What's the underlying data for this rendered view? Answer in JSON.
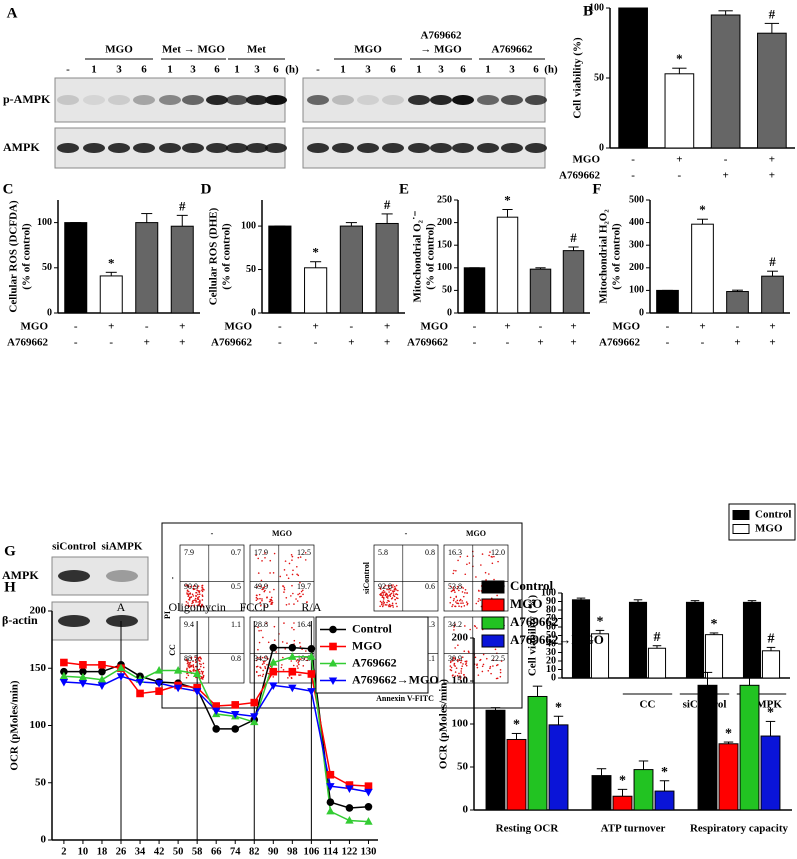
{
  "blot_a": {
    "panel": "A",
    "rows": [
      "p-AMPK",
      "AMPK"
    ],
    "left": {
      "groups": [
        [
          "MGO"
        ],
        [
          "Met → MGO"
        ],
        [
          "Met"
        ]
      ],
      "lanes": [
        "-",
        "1",
        "3",
        "6",
        "1",
        "3",
        "6",
        "1",
        "3",
        "6"
      ],
      "unit": "(h)"
    },
    "right": {
      "groups": [
        [
          "MGO"
        ],
        [
          "A769662",
          "→ MGO"
        ],
        [
          "A769662"
        ]
      ],
      "lanes": [
        "-",
        "1",
        "3",
        "6",
        "1",
        "3",
        "6",
        "1",
        "3",
        "6"
      ],
      "unit": "(h)"
    }
  },
  "blot_g": {
    "panel": "G",
    "lanes": [
      "siControl",
      "siAMPK"
    ],
    "rows": [
      "AMPK",
      "β-actin"
    ]
  },
  "flow": {
    "x_label": "Annexin V-FITC",
    "y_label": "PI",
    "groups": [
      {
        "columns": [
          "-",
          "MGO"
        ],
        "rows": [
          "-",
          "CC"
        ],
        "plots": [
          [
            "7.9",
            "0.7",
            "90.9",
            "0.5"
          ],
          [
            "17.9",
            "12.5",
            "49.9",
            "19.7"
          ],
          [
            "9.4",
            "1.1",
            "88.7",
            "0.8"
          ],
          [
            "28.8",
            "16.4",
            "34.9",
            "19.9"
          ]
        ]
      },
      {
        "columns": [
          "-",
          "MGO"
        ],
        "rows": [
          "siControl",
          "siAMPK"
        ],
        "plots": [
          [
            "5.8",
            "0.8",
            "92.8",
            "0.6"
          ],
          [
            "16.3",
            "12.0",
            "53.8",
            "17.9"
          ],
          [
            "7.7",
            "1.3",
            "89.9",
            "1.1"
          ],
          [
            "34.2",
            "12.4",
            "30.9",
            "22.5"
          ]
        ]
      }
    ]
  },
  "chart_data": [
    {
      "type": "bar",
      "panel": "B",
      "ylabel": [
        "Cell viability (%)"
      ],
      "values": [
        100,
        53,
        95,
        82
      ],
      "errors": [
        0,
        4,
        3,
        7
      ],
      "sig": [
        null,
        "*",
        null,
        "#"
      ],
      "colors": [
        "#000000",
        "#ffffff",
        "#666666",
        "#666666"
      ],
      "factors": [
        {
          "name": "MGO",
          "levels": [
            "-",
            "+",
            "-",
            "+"
          ]
        },
        {
          "name": "A769662",
          "levels": [
            "-",
            "-",
            "+",
            "+"
          ]
        }
      ],
      "ylim": [
        0,
        100
      ],
      "yticks": [
        0,
        50,
        100
      ]
    },
    {
      "type": "bar",
      "panel": "C",
      "ylabel": [
        "Cellular ROS (DCFDA)",
        "(% of control)"
      ],
      "values": [
        100,
        41,
        100,
        96
      ],
      "errors": [
        0,
        4,
        10,
        12
      ],
      "sig": [
        null,
        "*",
        null,
        "#"
      ],
      "colors": [
        "#000000",
        "#ffffff",
        "#666666",
        "#666666"
      ],
      "factors": [
        {
          "name": "MGO",
          "levels": [
            "-",
            "+",
            "-",
            "+"
          ]
        },
        {
          "name": "A769662",
          "levels": [
            "-",
            "-",
            "+",
            "+"
          ]
        }
      ],
      "ylim": [
        0,
        125
      ],
      "yticks": [
        0,
        50,
        100
      ]
    },
    {
      "type": "bar",
      "panel": "D",
      "ylabel": [
        "Cellular ROS (DHE)",
        "(% of control)"
      ],
      "values": [
        100,
        52,
        100,
        103
      ],
      "errors": [
        0,
        7,
        4,
        11
      ],
      "sig": [
        null,
        "*",
        null,
        "#"
      ],
      "colors": [
        "#000000",
        "#ffffff",
        "#666666",
        "#666666"
      ],
      "factors": [
        {
          "name": "MGO",
          "levels": [
            "-",
            "+",
            "-",
            "+"
          ]
        },
        {
          "name": "A769662",
          "levels": [
            "-",
            "-",
            "+",
            "+"
          ]
        }
      ],
      "ylim": [
        0,
        130
      ],
      "yticks": [
        0,
        50,
        100
      ]
    },
    {
      "type": "bar",
      "panel": "E",
      "ylabel": [
        "Mitochondrial O₂˙⁻",
        "(% of control)"
      ],
      "values": [
        100,
        212,
        97,
        138
      ],
      "errors": [
        0,
        17,
        3,
        8
      ],
      "sig": [
        null,
        "*",
        null,
        "#"
      ],
      "colors": [
        "#000000",
        "#ffffff",
        "#666666",
        "#666666"
      ],
      "factors": [
        {
          "name": "MGO",
          "levels": [
            "-",
            "+",
            "-",
            "+"
          ]
        },
        {
          "name": "A769662",
          "levels": [
            "-",
            "-",
            "+",
            "+"
          ]
        }
      ],
      "ylim": [
        0,
        250
      ],
      "yticks": [
        0,
        50,
        100,
        150,
        200,
        250
      ]
    },
    {
      "type": "bar",
      "panel": "F",
      "ylabel": [
        "Mitochondrial H₂O₂",
        "(% of control)"
      ],
      "values": [
        100,
        393,
        95,
        163
      ],
      "errors": [
        0,
        22,
        6,
        22
      ],
      "sig": [
        null,
        "*",
        null,
        "#"
      ],
      "colors": [
        "#000000",
        "#ffffff",
        "#666666",
        "#666666"
      ],
      "factors": [
        {
          "name": "MGO",
          "levels": [
            "-",
            "+",
            "-",
            "+"
          ]
        },
        {
          "name": "A769662",
          "levels": [
            "-",
            "-",
            "+",
            "+"
          ]
        }
      ],
      "ylim": [
        0,
        500
      ],
      "yticks": [
        0,
        100,
        200,
        300,
        400,
        500
      ]
    },
    {
      "type": "grouped-bar",
      "ylabel": [
        "Cell viability (%)"
      ],
      "categories": [
        null,
        "CC",
        "siControl",
        "siAMPK"
      ],
      "legend": "upper-right",
      "series": [
        {
          "name": "Control",
          "color": "#000000",
          "values": [
            92,
            89,
            89,
            89
          ],
          "errors": [
            2,
            3,
            2,
            2
          ]
        },
        {
          "name": "MGO",
          "color": "#ffffff",
          "values": [
            52,
            35,
            51,
            32
          ],
          "errors": [
            4,
            3,
            2,
            4
          ],
          "sig": [
            "*",
            "#",
            "*",
            "#"
          ]
        }
      ],
      "ylim": [
        0,
        100
      ],
      "yticks": [
        0,
        10,
        20,
        30,
        40,
        50,
        60,
        70,
        80,
        90,
        100
      ]
    },
    {
      "type": "line",
      "panel": "H",
      "xlabel": "Time (min)",
      "ylabel": "OCR (pMoles/min)",
      "legend": "upper-right",
      "x": [
        2,
        10,
        18,
        26,
        34,
        42,
        50,
        58,
        66,
        74,
        82,
        90,
        98,
        106,
        114,
        122,
        130
      ],
      "xlim": [
        -3,
        134
      ],
      "xticks": [
        2,
        10,
        18,
        26,
        34,
        42,
        50,
        58,
        66,
        74,
        82,
        90,
        98,
        106,
        114,
        122,
        130
      ],
      "ylim": [
        0,
        200
      ],
      "yticks": [
        0,
        50,
        100,
        150,
        200
      ],
      "phases": [
        {
          "label": "A",
          "x": 26
        },
        {
          "label": "Oligomycin",
          "x": 58
        },
        {
          "label": "FCCP",
          "x": 82
        },
        {
          "label": "R/A",
          "x": 106
        }
      ],
      "series": [
        {
          "name": "Control",
          "color": "#000000",
          "marker": "circle",
          "values": [
            147,
            147,
            147,
            153,
            143,
            138,
            137,
            132,
            97,
            97,
            105,
            168,
            168,
            167,
            33,
            28,
            29
          ]
        },
        {
          "name": "MGO",
          "color": "#ff0000",
          "marker": "square",
          "values": [
            155,
            153,
            153,
            150,
            128,
            130,
            135,
            133,
            117,
            118,
            120,
            147,
            147,
            145,
            57,
            48,
            47
          ]
        },
        {
          "name": "A769662",
          "color": "#33cc33",
          "marker": "triangle",
          "values": [
            143,
            142,
            140,
            150,
            140,
            148,
            148,
            145,
            110,
            108,
            103,
            155,
            160,
            160,
            25,
            17,
            16
          ]
        },
        {
          "name": "A769662→MGO",
          "color": "#0000ff",
          "marker": "triangle-down",
          "values": [
            138,
            137,
            135,
            143,
            138,
            137,
            133,
            130,
            113,
            110,
            108,
            135,
            133,
            130,
            47,
            45,
            42
          ]
        }
      ]
    },
    {
      "type": "grouped-bar",
      "ylabel": [
        "OCR (pMoles/min)"
      ],
      "categories": [
        "Resting OCR",
        "ATP turnover",
        "Respiratory capacity"
      ],
      "legend": "upper-left",
      "series": [
        {
          "name": "Control",
          "color": "#000000",
          "values": [
            116,
            40,
            145
          ],
          "errors": [
            3,
            8,
            15
          ]
        },
        {
          "name": "MGO",
          "color": "#ff0000",
          "values": [
            82,
            16,
            77
          ],
          "errors": [
            7,
            8,
            2
          ],
          "sig": [
            "*",
            "*",
            "*"
          ]
        },
        {
          "name": "A769662",
          "color": "#22c322",
          "values": [
            132,
            47,
            145
          ],
          "errors": [
            12,
            10,
            20
          ]
        },
        {
          "name": "A769662→MGO",
          "color": "#0a14d8",
          "values": [
            99,
            22,
            86
          ],
          "errors": [
            10,
            12,
            17
          ],
          "sig": [
            "*",
            "*",
            "*"
          ]
        }
      ],
      "ylim": [
        0,
        200
      ],
      "yticks": [
        0,
        50,
        100,
        150,
        200
      ]
    }
  ]
}
